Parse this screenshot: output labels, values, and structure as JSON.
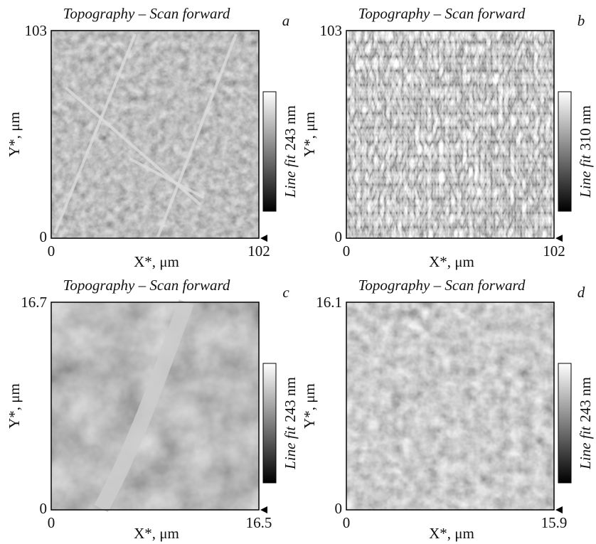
{
  "panels": [
    {
      "title": "Topography – Scan forward",
      "letter": "a",
      "xlabel": "X*, μm",
      "ylabel": "Y*, μm",
      "xticks": [
        "0",
        "102"
      ],
      "yticks": [
        "0",
        "103"
      ],
      "colorbar_label": "Line fit",
      "colorbar_range": "243 nm"
    },
    {
      "title": "Topography – Scan forward",
      "letter": "b",
      "xlabel": "X*, μm",
      "ylabel": "Y*, μm",
      "xticks": [
        "0",
        "102"
      ],
      "yticks": [
        "0",
        "103"
      ],
      "colorbar_label": "Line fit",
      "colorbar_range": "310 nm"
    },
    {
      "title": "Topography – Scan forward",
      "letter": "c",
      "xlabel": "X*, μm",
      "ylabel": "Y*, μm",
      "xticks": [
        "0",
        "16.5"
      ],
      "yticks": [
        "0",
        "16.7"
      ],
      "colorbar_label": "Line fit",
      "colorbar_range": "243 nm"
    },
    {
      "title": "Topography – Scan forward",
      "letter": "d",
      "xlabel": "X*, μm",
      "ylabel": "Y*, μm",
      "xticks": [
        "0",
        "15.9"
      ],
      "yticks": [
        "0",
        "16.1"
      ],
      "colorbar_label": "Line fit",
      "colorbar_range": "243 nm"
    }
  ]
}
